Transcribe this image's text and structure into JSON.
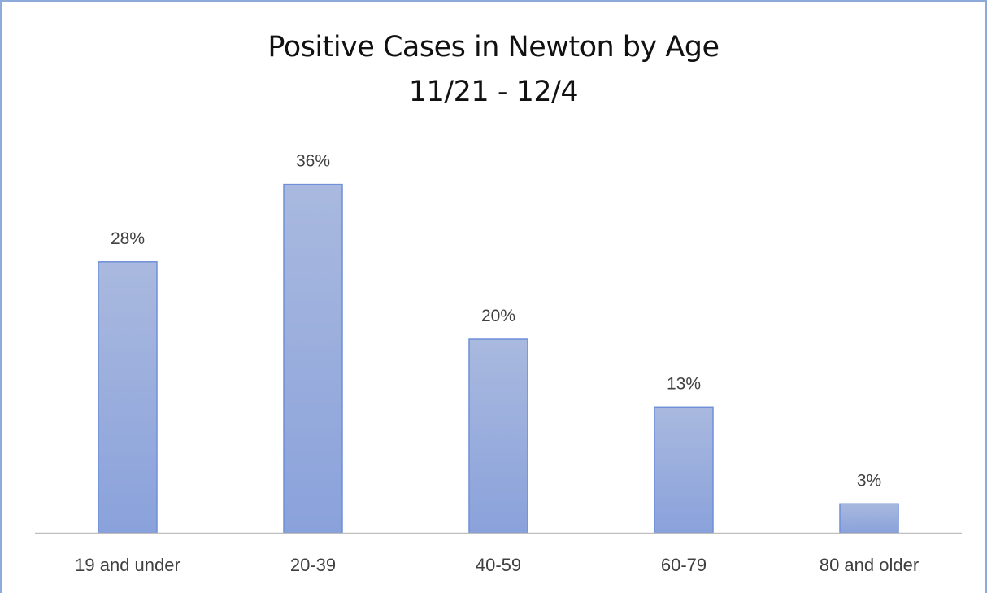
{
  "chart_data": {
    "type": "bar",
    "title": "Positive Cases in Newton by Age",
    "subtitle": "11/21 - 12/4",
    "categories": [
      "19 and under",
      "20-39",
      "40-59",
      "60-79",
      "80 and older"
    ],
    "values": [
      28,
      36,
      20,
      13,
      3
    ],
    "data_labels": [
      "28%",
      "36%",
      "20%",
      "13%",
      "3%"
    ],
    "unit": "%",
    "xlabel": "",
    "ylabel": "",
    "ylim": [
      0,
      40
    ],
    "grid": false,
    "legend": "none",
    "colors": {
      "bar_top": "#a9b9df",
      "bar_bottom": "#8aa2db",
      "bar_border": "#6f8fd8",
      "axis": "#bfbfbf",
      "frame": "#8eaadb"
    }
  }
}
